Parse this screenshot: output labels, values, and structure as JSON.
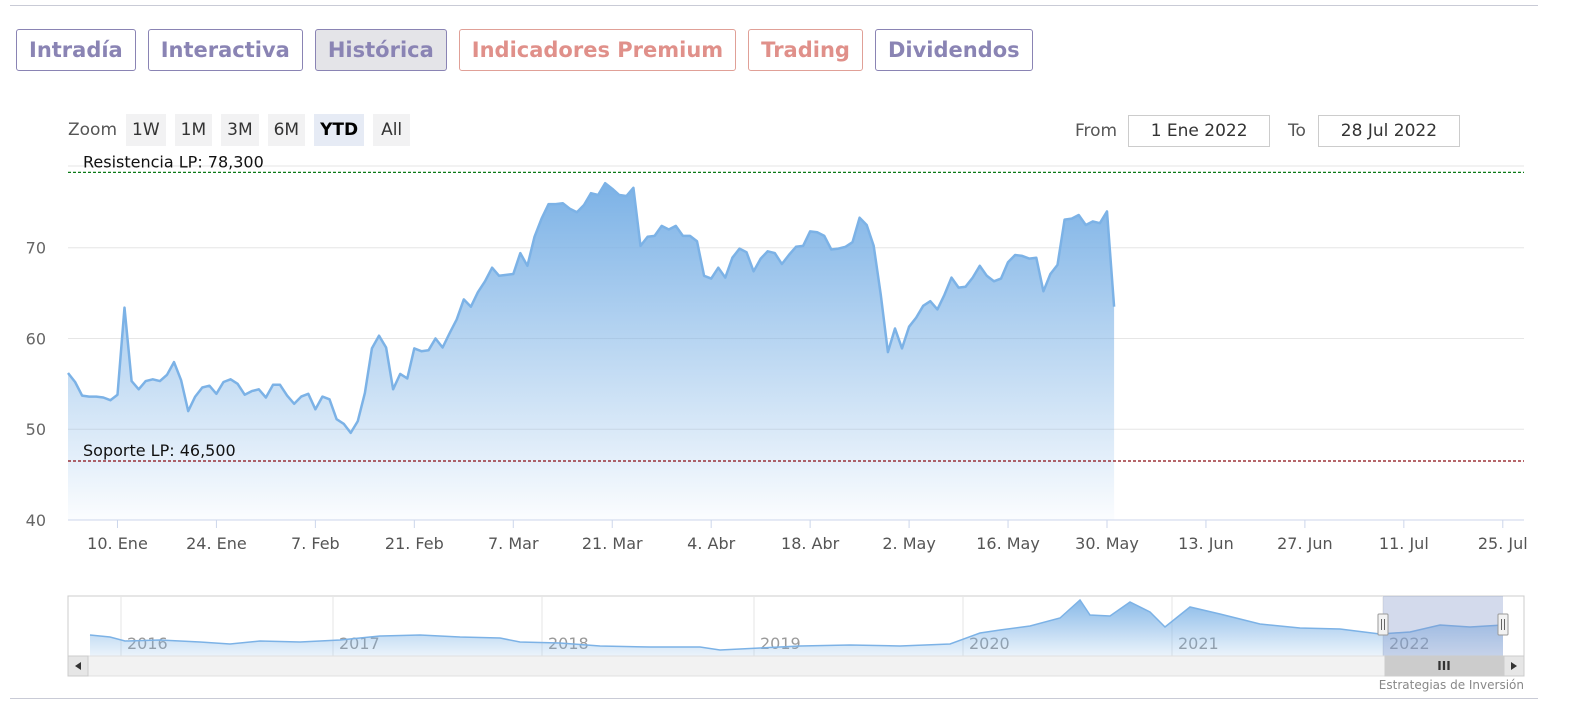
{
  "tabs": [
    {
      "label": "Intradía",
      "style": "purple",
      "active": false
    },
    {
      "label": "Interactiva",
      "style": "purple",
      "active": false
    },
    {
      "label": "Histórica",
      "style": "purple",
      "active": true
    },
    {
      "label": "Indicadores Premium",
      "style": "salmon",
      "active": false
    },
    {
      "label": "Trading",
      "style": "salmon",
      "active": false
    },
    {
      "label": "Dividendos",
      "style": "purple",
      "active": false
    }
  ],
  "zoom": {
    "label": "Zoom",
    "buttons": [
      "1W",
      "1M",
      "3M",
      "6M",
      "YTD",
      "All"
    ],
    "selected": "YTD"
  },
  "range": {
    "from_label": "From",
    "from_value": "1 Ene 2022",
    "to_label": "To",
    "to_value": "28 Jul 2022"
  },
  "credit": "Estrategias de Inversión",
  "colors": {
    "line": "#7cb2e6",
    "resistance": "#0a7a17",
    "support": "#8a0b12",
    "tab_purple": "#8a84b4",
    "tab_salmon": "#e0908a"
  },
  "chart_data": {
    "type": "area",
    "ylim": [
      40,
      79
    ],
    "yticks": [
      40,
      50,
      60,
      70
    ],
    "xlim": [
      "2022-01-03",
      "2022-07-28"
    ],
    "xticks": [
      {
        "date": "2022-01-10",
        "label": "10. Ene"
      },
      {
        "date": "2022-01-24",
        "label": "24. Ene"
      },
      {
        "date": "2022-02-07",
        "label": "7. Feb"
      },
      {
        "date": "2022-02-21",
        "label": "21. Feb"
      },
      {
        "date": "2022-03-07",
        "label": "7. Mar"
      },
      {
        "date": "2022-03-21",
        "label": "21. Mar"
      },
      {
        "date": "2022-04-04",
        "label": "4. Abr"
      },
      {
        "date": "2022-04-18",
        "label": "18. Abr"
      },
      {
        "date": "2022-05-02",
        "label": "2. May"
      },
      {
        "date": "2022-05-16",
        "label": "16. May"
      },
      {
        "date": "2022-05-30",
        "label": "30. May"
      },
      {
        "date": "2022-06-13",
        "label": "13. Jun"
      },
      {
        "date": "2022-06-27",
        "label": "27. Jun"
      },
      {
        "date": "2022-07-11",
        "label": "11. Jul"
      },
      {
        "date": "2022-07-25",
        "label": "25. Jul"
      }
    ],
    "plotlines": [
      {
        "label": "Resistencia LP: 78,300",
        "value": 78.3
      },
      {
        "label": "Soporte LP: 46,500",
        "value": 46.5
      }
    ],
    "series": [
      {
        "points": [
          [
            "2022-01-03",
            56.2
          ],
          [
            "2022-01-04",
            55.2
          ],
          [
            "2022-01-05",
            53.7
          ],
          [
            "2022-01-06",
            53.6
          ],
          [
            "2022-01-07",
            53.6
          ],
          [
            "2022-01-08",
            53.5
          ],
          [
            "2022-01-09",
            53.2
          ],
          [
            "2022-01-10",
            53.8
          ],
          [
            "2022-01-11",
            63.4
          ],
          [
            "2022-01-12",
            55.3
          ],
          [
            "2022-01-13",
            54.4
          ],
          [
            "2022-01-14",
            55.3
          ],
          [
            "2022-01-15",
            55.5
          ],
          [
            "2022-01-16",
            55.3
          ],
          [
            "2022-01-17",
            56.0
          ],
          [
            "2022-01-18",
            57.4
          ],
          [
            "2022-01-19",
            55.4
          ],
          [
            "2022-01-20",
            52.0
          ],
          [
            "2022-01-21",
            53.6
          ],
          [
            "2022-01-22",
            54.6
          ],
          [
            "2022-01-23",
            54.8
          ],
          [
            "2022-01-24",
            53.9
          ],
          [
            "2022-01-25",
            55.2
          ],
          [
            "2022-01-26",
            55.5
          ],
          [
            "2022-01-27",
            55.0
          ],
          [
            "2022-01-28",
            53.8
          ],
          [
            "2022-01-29",
            54.2
          ],
          [
            "2022-01-30",
            54.4
          ],
          [
            "2022-01-31",
            53.5
          ],
          [
            "2022-02-01",
            54.9
          ],
          [
            "2022-02-02",
            54.9
          ],
          [
            "2022-02-03",
            53.7
          ],
          [
            "2022-02-04",
            52.8
          ],
          [
            "2022-02-05",
            53.6
          ],
          [
            "2022-02-06",
            53.9
          ],
          [
            "2022-02-07",
            52.2
          ],
          [
            "2022-02-08",
            53.6
          ],
          [
            "2022-02-09",
            53.3
          ],
          [
            "2022-02-10",
            51.1
          ],
          [
            "2022-02-11",
            50.6
          ],
          [
            "2022-02-12",
            49.6
          ],
          [
            "2022-02-13",
            50.9
          ],
          [
            "2022-02-14",
            54.0
          ],
          [
            "2022-02-15",
            58.9
          ],
          [
            "2022-02-16",
            60.3
          ],
          [
            "2022-02-17",
            59.0
          ],
          [
            "2022-02-18",
            54.4
          ],
          [
            "2022-02-19",
            56.1
          ],
          [
            "2022-02-20",
            55.6
          ],
          [
            "2022-02-21",
            58.9
          ],
          [
            "2022-02-22",
            58.6
          ],
          [
            "2022-02-23",
            58.7
          ],
          [
            "2022-02-24",
            60.0
          ],
          [
            "2022-02-25",
            59.0
          ],
          [
            "2022-02-26",
            60.6
          ],
          [
            "2022-02-27",
            62.1
          ],
          [
            "2022-02-28",
            64.3
          ],
          [
            "2022-03-01",
            63.5
          ],
          [
            "2022-03-02",
            65.1
          ],
          [
            "2022-03-03",
            66.3
          ],
          [
            "2022-03-04",
            67.8
          ],
          [
            "2022-03-05",
            66.9
          ],
          [
            "2022-03-06",
            67.0
          ],
          [
            "2022-03-07",
            67.1
          ],
          [
            "2022-03-08",
            69.4
          ],
          [
            "2022-03-09",
            68.0
          ],
          [
            "2022-03-10",
            71.2
          ],
          [
            "2022-03-11",
            73.2
          ],
          [
            "2022-03-12",
            74.8
          ],
          [
            "2022-03-13",
            74.8
          ],
          [
            "2022-03-14",
            74.9
          ],
          [
            "2022-03-15",
            74.3
          ],
          [
            "2022-03-16",
            73.9
          ],
          [
            "2022-03-17",
            74.7
          ],
          [
            "2022-03-18",
            76.0
          ],
          [
            "2022-03-19",
            75.8
          ],
          [
            "2022-03-20",
            77.1
          ],
          [
            "2022-03-21",
            76.5
          ],
          [
            "2022-03-22",
            75.8
          ],
          [
            "2022-03-23",
            75.7
          ],
          [
            "2022-03-24",
            76.6
          ],
          [
            "2022-03-25",
            70.2
          ],
          [
            "2022-03-26",
            71.2
          ],
          [
            "2022-03-27",
            71.3
          ],
          [
            "2022-03-28",
            72.4
          ],
          [
            "2022-03-29",
            72.0
          ],
          [
            "2022-03-30",
            72.4
          ],
          [
            "2022-03-31",
            71.3
          ],
          [
            "2022-04-01",
            71.3
          ],
          [
            "2022-04-02",
            70.7
          ],
          [
            "2022-04-03",
            66.9
          ],
          [
            "2022-04-04",
            66.6
          ],
          [
            "2022-04-05",
            67.8
          ],
          [
            "2022-04-06",
            66.7
          ],
          [
            "2022-04-07",
            68.9
          ],
          [
            "2022-04-08",
            69.9
          ],
          [
            "2022-04-09",
            69.5
          ],
          [
            "2022-04-10",
            67.4
          ],
          [
            "2022-04-11",
            68.8
          ],
          [
            "2022-04-12",
            69.6
          ],
          [
            "2022-04-13",
            69.4
          ],
          [
            "2022-04-14",
            68.2
          ],
          [
            "2022-04-15",
            69.2
          ],
          [
            "2022-04-16",
            70.1
          ],
          [
            "2022-04-17",
            70.2
          ],
          [
            "2022-04-18",
            71.8
          ],
          [
            "2022-04-19",
            71.7
          ],
          [
            "2022-04-20",
            71.3
          ],
          [
            "2022-04-21",
            69.8
          ],
          [
            "2022-04-22",
            69.9
          ],
          [
            "2022-04-23",
            70.1
          ],
          [
            "2022-04-24",
            70.6
          ],
          [
            "2022-04-25",
            73.3
          ],
          [
            "2022-04-26",
            72.5
          ],
          [
            "2022-04-27",
            70.2
          ],
          [
            "2022-04-28",
            64.8
          ],
          [
            "2022-04-29",
            58.5
          ],
          [
            "2022-04-30",
            61.1
          ],
          [
            "2022-05-01",
            58.9
          ],
          [
            "2022-05-02",
            61.3
          ],
          [
            "2022-05-03",
            62.3
          ],
          [
            "2022-05-04",
            63.6
          ],
          [
            "2022-05-05",
            64.1
          ],
          [
            "2022-05-06",
            63.2
          ],
          [
            "2022-05-07",
            64.8
          ],
          [
            "2022-05-08",
            66.7
          ],
          [
            "2022-05-09",
            65.6
          ],
          [
            "2022-05-10",
            65.7
          ],
          [
            "2022-05-11",
            66.7
          ],
          [
            "2022-05-12",
            68.0
          ],
          [
            "2022-05-13",
            66.9
          ],
          [
            "2022-05-14",
            66.3
          ],
          [
            "2022-05-15",
            66.6
          ],
          [
            "2022-05-16",
            68.4
          ],
          [
            "2022-05-17",
            69.2
          ],
          [
            "2022-05-18",
            69.1
          ],
          [
            "2022-05-19",
            68.8
          ],
          [
            "2022-05-20",
            68.9
          ],
          [
            "2022-05-21",
            65.2
          ],
          [
            "2022-05-22",
            67.1
          ],
          [
            "2022-05-23",
            68.1
          ],
          [
            "2022-05-24",
            73.1
          ],
          [
            "2022-05-25",
            73.2
          ],
          [
            "2022-05-26",
            73.6
          ],
          [
            "2022-05-27",
            72.5
          ],
          [
            "2022-05-28",
            72.9
          ],
          [
            "2022-05-29",
            72.7
          ],
          [
            "2022-05-30",
            74.0
          ],
          [
            "2022-05-31",
            63.5
          ]
        ]
      }
    ],
    "navigator": {
      "year_labels": [
        "2016",
        "2017",
        "2018",
        "2019",
        "2020",
        "2021",
        "2022"
      ],
      "scrollbar_grip": "III"
    }
  }
}
